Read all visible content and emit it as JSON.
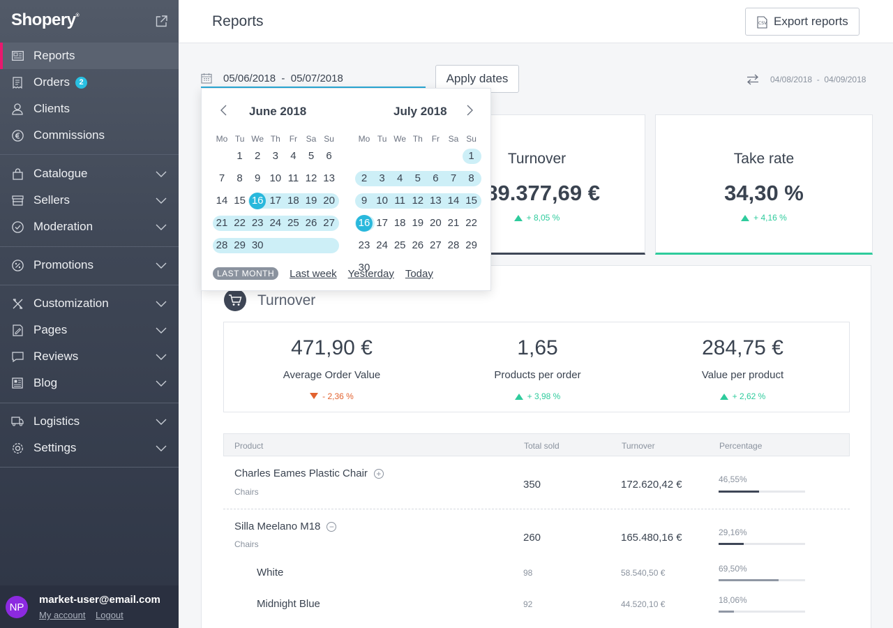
{
  "brand": {
    "name": "Shopery",
    "mark": "®"
  },
  "sidebar": {
    "items": [
      {
        "label": "Reports",
        "icon": "reports-icon",
        "active": true
      },
      {
        "label": "Orders",
        "icon": "orders-icon",
        "badge": "2"
      },
      {
        "label": "Clients",
        "icon": "user-icon"
      },
      {
        "label": "Commissions",
        "icon": "euro-icon"
      },
      {
        "label": "Catalogue",
        "icon": "bag-icon"
      },
      {
        "label": "Sellers",
        "icon": "store-icon"
      },
      {
        "label": "Moderation",
        "icon": "check-circle-icon"
      },
      {
        "label": "Promotions",
        "icon": "percent-icon"
      },
      {
        "label": "Customization",
        "icon": "tools-icon"
      },
      {
        "label": "Pages",
        "icon": "page-edit-icon"
      },
      {
        "label": "Reviews",
        "icon": "review-icon"
      },
      {
        "label": "Blog",
        "icon": "blog-icon"
      },
      {
        "label": "Logistics",
        "icon": "truck-icon"
      },
      {
        "label": "Settings",
        "icon": "gear-icon"
      }
    ]
  },
  "user": {
    "initials": "NP",
    "email": "market-user@email.com",
    "my_account": "My account",
    "logout": "Logout"
  },
  "header": {
    "title": "Reports",
    "export_label": "Export reports",
    "export_icon": "csv-icon"
  },
  "date_filter": {
    "range": "05/06/2018  -  05/07/2018",
    "apply_label": "Apply dates",
    "compare_range": "04/08/2018  -  04/09/2018"
  },
  "date_picker": {
    "months": [
      {
        "name": "June 2018",
        "start_offset": 1,
        "days": 30
      },
      {
        "name": "July 2018",
        "start_offset": 6,
        "days": 31
      }
    ],
    "weekdays": [
      "Mo",
      "Tu",
      "We",
      "Th",
      "Fr",
      "Sa",
      "Su"
    ],
    "selected": [
      {
        "month": 0,
        "day": 16
      },
      {
        "month": 1,
        "day": 16
      }
    ],
    "quick": {
      "active": "LAST MONTH",
      "last_week": "Last week",
      "yesterday": "Yesterday",
      "today": "Today"
    }
  },
  "kpis": [
    {
      "title": "Turnover",
      "value": "289.377,69 €",
      "delta": "+ 8,05 %",
      "trend": "up"
    },
    {
      "title": "Take rate",
      "value": "34,30 %",
      "delta": "+ 4,16 %",
      "trend": "up"
    }
  ],
  "turnover": {
    "title": "Turnover",
    "icon": "cart-icon",
    "metrics": [
      {
        "value": "471,90 €",
        "label": "Average Order Value",
        "delta": "- 2,36 %",
        "trend": "down"
      },
      {
        "value": "1,65",
        "label": "Products per order",
        "delta": "+ 3,98 %",
        "trend": "up"
      },
      {
        "value": "284,75 €",
        "label": "Value per product",
        "delta": "+ 2,62 %",
        "trend": "up"
      }
    ],
    "table": {
      "headers": {
        "product": "Product",
        "total_sold": "Total sold",
        "turnover": "Turnover",
        "percentage": "Percentage"
      },
      "rows": [
        {
          "name": "Charles Eames Plastic Chair",
          "category": "Chairs",
          "total": "350",
          "turnover": "172.620,42 €",
          "pct": "46,55%",
          "pct_value": 0.4655,
          "toggle": "+"
        },
        {
          "name": "Silla Meelano M18",
          "category": "Chairs",
          "total": "260",
          "turnover": "165.480,16 €",
          "pct": "29,16%",
          "pct_value": 0.2916,
          "toggle": "−"
        }
      ],
      "subrows": [
        {
          "name": "White",
          "total": "98",
          "turnover": "58.540,50 €",
          "pct": "69,50%",
          "pct_value": 0.695
        },
        {
          "name": "Midnight Blue",
          "total": "92",
          "turnover": "44.520,10 €",
          "pct": "18,06%",
          "pct_value": 0.1806
        }
      ]
    }
  }
}
